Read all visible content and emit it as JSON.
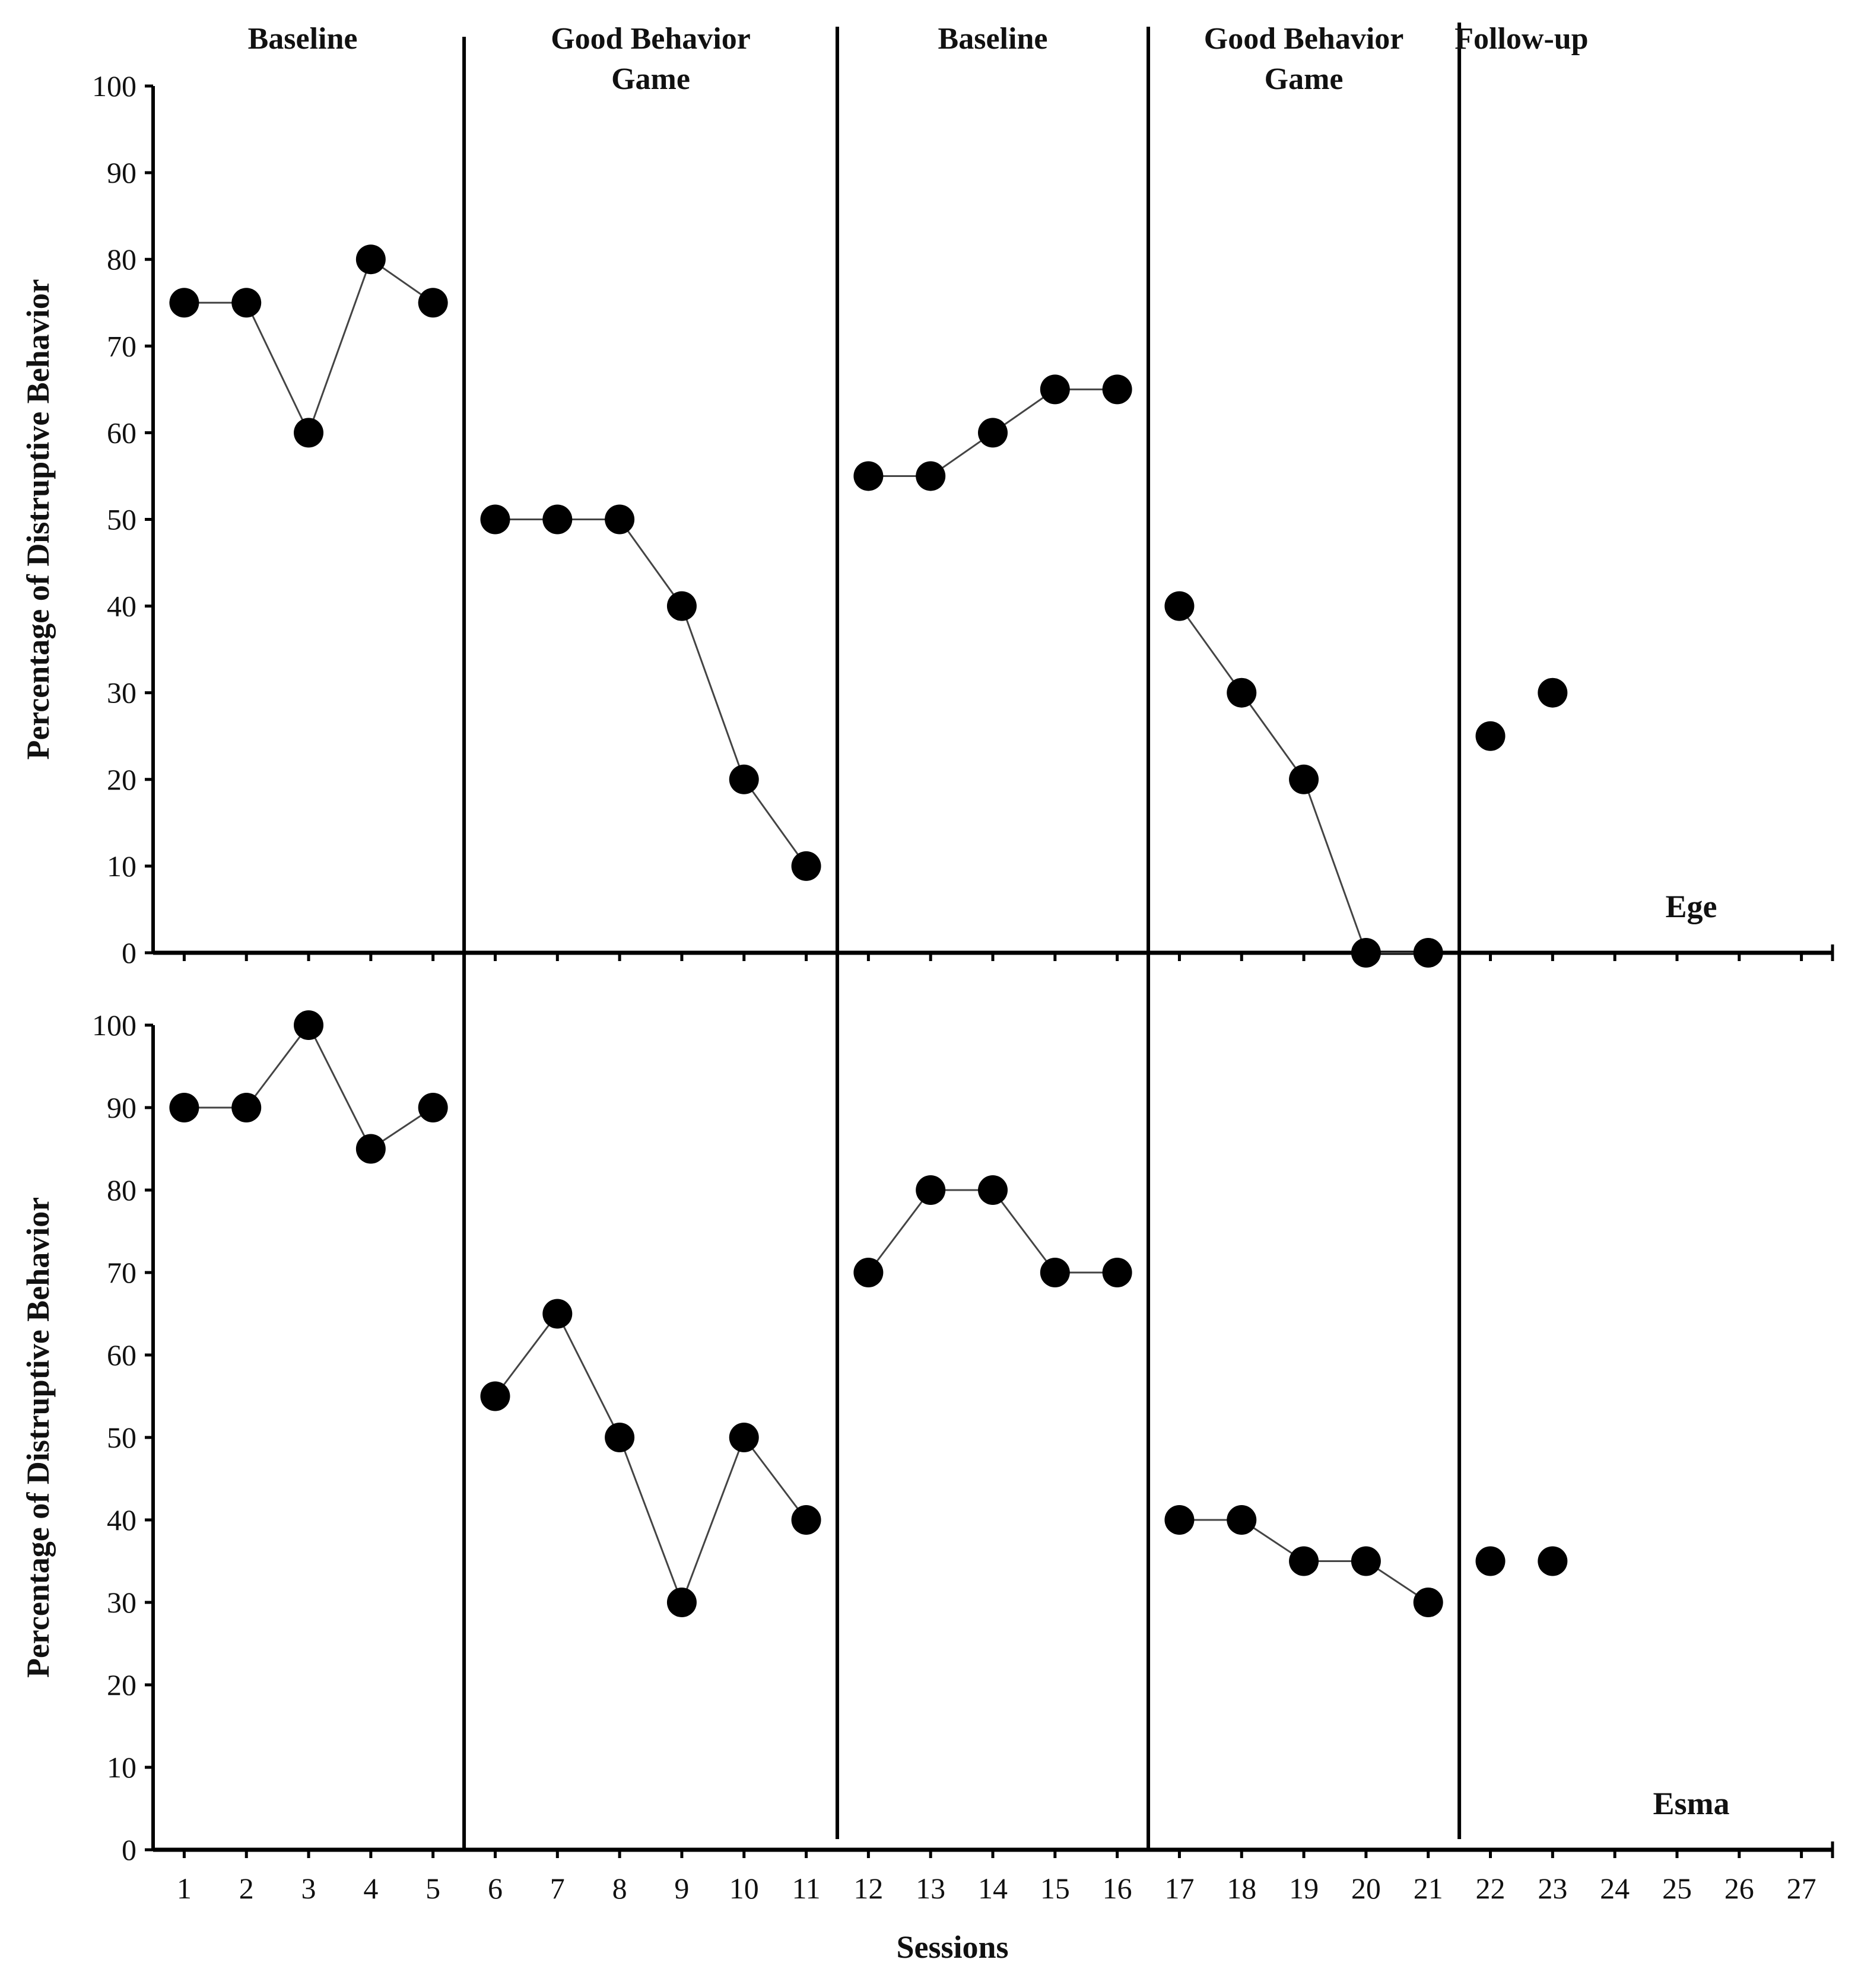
{
  "colors": {
    "marker": "#000000",
    "line": "#444444",
    "axis": "#000000",
    "text": "#111111"
  },
  "chart_data": [
    {
      "type": "line",
      "participant": "Ege",
      "ylabel": "Percentage of Distruptive Behavior",
      "xlabel": "",
      "ylim": [
        0,
        100
      ],
      "yticks": [
        0,
        10,
        20,
        30,
        40,
        50,
        60,
        70,
        80,
        90,
        100
      ],
      "xlim": [
        0.5,
        27.5
      ],
      "grid": false,
      "phases": [
        {
          "label": [
            "Baseline"
          ],
          "sessions": [
            1,
            2,
            3,
            4,
            5
          ]
        },
        {
          "label": [
            "Good Behavior",
            "Game"
          ],
          "sessions": [
            6,
            7,
            8,
            9,
            10,
            11
          ]
        },
        {
          "label": [
            "Baseline"
          ],
          "sessions": [
            12,
            13,
            14,
            15,
            16
          ]
        },
        {
          "label": [
            "Good Behavior",
            "Game"
          ],
          "sessions": [
            17,
            18,
            19,
            20,
            21
          ]
        },
        {
          "label": [
            "Follow-up"
          ],
          "sessions": [
            22,
            23
          ]
        }
      ],
      "phase_change_lines": [
        5.5,
        11.5,
        16.5,
        21.5
      ],
      "series": [
        {
          "name": "Ege",
          "x": [
            1,
            2,
            3,
            4,
            5,
            6,
            7,
            8,
            9,
            10,
            11,
            12,
            13,
            14,
            15,
            16,
            17,
            18,
            19,
            20,
            21,
            22,
            23
          ],
          "values": [
            75,
            75,
            60,
            80,
            75,
            50,
            50,
            50,
            40,
            20,
            10,
            55,
            55,
            60,
            65,
            65,
            40,
            30,
            20,
            0,
            0,
            25,
            30
          ]
        }
      ]
    },
    {
      "type": "line",
      "participant": "Esma",
      "ylabel": "Percentage of Distruptive Behavior",
      "xlabel": "Sessions",
      "ylim": [
        0,
        100
      ],
      "yticks": [
        0,
        10,
        20,
        30,
        40,
        50,
        60,
        70,
        80,
        90,
        100
      ],
      "xlim": [
        0.5,
        27.5
      ],
      "xticks": [
        1,
        2,
        3,
        4,
        5,
        6,
        7,
        8,
        9,
        10,
        11,
        12,
        13,
        14,
        15,
        16,
        17,
        18,
        19,
        20,
        21,
        22,
        23,
        24,
        25,
        26,
        27
      ],
      "grid": false,
      "phase_change_lines": [
        5.5,
        11.5,
        16.5,
        21.5
      ],
      "series": [
        {
          "name": "Esma",
          "x": [
            1,
            2,
            3,
            4,
            5,
            6,
            7,
            8,
            9,
            10,
            11,
            12,
            13,
            14,
            15,
            16,
            17,
            18,
            19,
            20,
            21,
            22,
            23
          ],
          "values": [
            90,
            90,
            100,
            85,
            90,
            55,
            65,
            50,
            30,
            50,
            40,
            70,
            80,
            80,
            70,
            70,
            40,
            40,
            35,
            35,
            30,
            35,
            35
          ]
        }
      ]
    }
  ]
}
